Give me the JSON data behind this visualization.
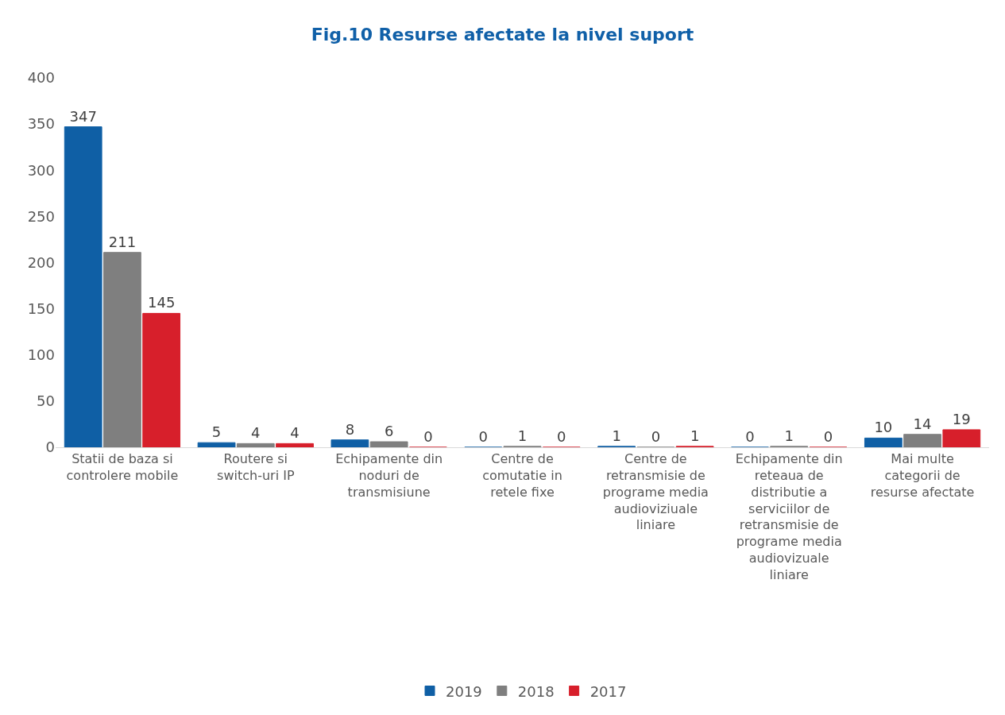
{
  "chart_data": {
    "type": "bar",
    "title": "Fig.10 Resurse afectate la nivel suport",
    "categories": [
      "Statii de baza si controlere mobile",
      "Routere si switch-uri IP",
      "Echipamente din noduri de transmisiune",
      "Centre de comutatie in retele fixe",
      "Centre de retransmisie de programe media audioviziuale liniare",
      "Echipamente din reteaua de distributie a serviciilor de retransmisie de programe media audiovizuale liniare",
      "Mai multe categorii de resurse afectate"
    ],
    "series": [
      {
        "name": "2019",
        "color": "#0f5fa5",
        "values": [
          347,
          5,
          8,
          0,
          1,
          0,
          10
        ]
      },
      {
        "name": "2018",
        "color": "#7f7f7f",
        "values": [
          211,
          4,
          6,
          1,
          0,
          1,
          14
        ]
      },
      {
        "name": "2017",
        "color": "#d71f2b",
        "values": [
          145,
          4,
          0,
          0,
          1,
          0,
          19
        ]
      }
    ],
    "ylim": [
      0,
      400
    ],
    "yticks": [
      0,
      50,
      100,
      150,
      200,
      250,
      300,
      350,
      400
    ],
    "grid": false,
    "legend": "bottom",
    "data_labels": true
  }
}
